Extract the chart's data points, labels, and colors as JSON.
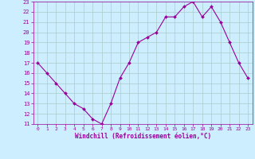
{
  "x": [
    0,
    1,
    2,
    3,
    4,
    5,
    6,
    7,
    8,
    9,
    10,
    11,
    12,
    13,
    14,
    15,
    16,
    17,
    18,
    19,
    20,
    21,
    22,
    23
  ],
  "y": [
    17,
    16,
    15,
    14,
    13,
    12.5,
    11.5,
    11,
    13,
    15.5,
    17,
    19,
    19.5,
    20,
    21.5,
    21.5,
    22.5,
    23,
    21.5,
    22.5,
    21,
    19,
    17,
    15.5
  ],
  "line_color": "#990099",
  "marker": "D",
  "marker_size": 2,
  "bg_color": "#cceeff",
  "grid_color": "#aacccc",
  "xlabel": "Windchill (Refroidissement éolien,°C)",
  "xlabel_color": "#990099",
  "tick_color": "#990099",
  "ylim": [
    11,
    23
  ],
  "xlim": [
    -0.5,
    23.5
  ],
  "yticks": [
    11,
    12,
    13,
    14,
    15,
    16,
    17,
    18,
    19,
    20,
    21,
    22,
    23
  ],
  "xticks": [
    0,
    1,
    2,
    3,
    4,
    5,
    6,
    7,
    8,
    9,
    10,
    11,
    12,
    13,
    14,
    15,
    16,
    17,
    18,
    19,
    20,
    21,
    22,
    23
  ]
}
